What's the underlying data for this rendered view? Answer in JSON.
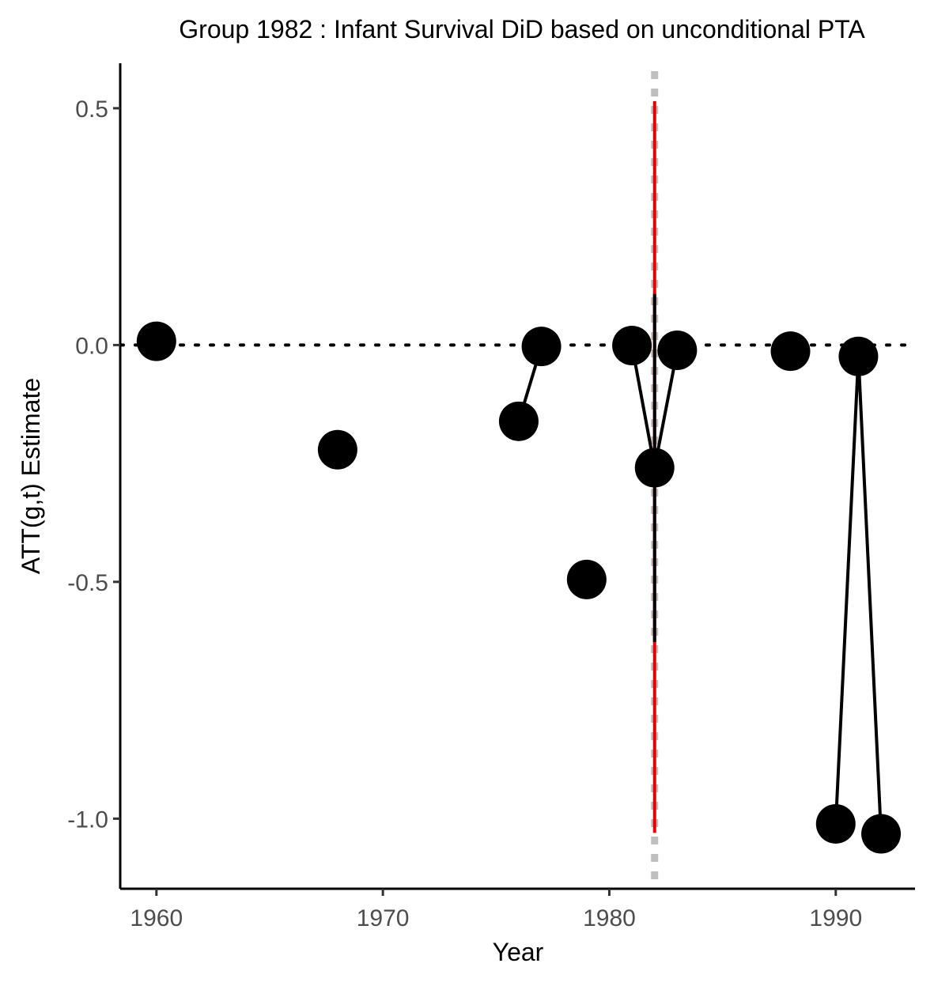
{
  "chart_data": {
    "type": "scatter",
    "title": "Group 1982 : Infant Survival DiD based on unconditional PTA",
    "xlabel": "Year",
    "ylabel": "ATT(g,t) Estimate",
    "xlim": [
      1958.4,
      1993.5
    ],
    "ylim": [
      -1.148,
      0.595
    ],
    "x_ticks": [
      1960,
      1970,
      1980,
      1990
    ],
    "x_tick_labels": [
      "1960",
      "1970",
      "1980",
      "1990"
    ],
    "y_ticks": [
      0.5,
      0.0,
      -0.5,
      -1.0
    ],
    "y_tick_labels": [
      "0.5",
      "0.0",
      "-0.5",
      "-1.0"
    ],
    "grid": false,
    "legend": "none",
    "reference_lines": {
      "horizontal_zero": {
        "y": 0,
        "style": "dotted",
        "color": "#000000"
      },
      "treatment_year": {
        "x": 1982,
        "style": "dashed",
        "color": "#bfbfbf"
      }
    },
    "points": [
      {
        "x": 1960,
        "y": 0.008
      },
      {
        "x": 1968,
        "y": -0.221
      },
      {
        "x": 1976,
        "y": -0.161
      },
      {
        "x": 1977,
        "y": -0.003
      },
      {
        "x": 1979,
        "y": -0.495
      },
      {
        "x": 1981,
        "y": -0.001
      },
      {
        "x": 1982,
        "y": -0.259
      },
      {
        "x": 1983,
        "y": -0.011
      },
      {
        "x": 1988,
        "y": -0.013
      },
      {
        "x": 1990,
        "y": -1.011
      },
      {
        "x": 1991,
        "y": -0.024
      },
      {
        "x": 1992,
        "y": -1.032
      }
    ],
    "connecting_segments": [
      {
        "from": [
          1976,
          -0.161
        ],
        "to": [
          1977,
          -0.003
        ]
      },
      {
        "from": [
          1981,
          -0.001
        ],
        "to": [
          1982,
          -0.259
        ]
      },
      {
        "from": [
          1982,
          -0.259
        ],
        "to": [
          1983,
          -0.011
        ]
      },
      {
        "from": [
          1990,
          -1.011
        ],
        "to": [
          1991,
          -0.024
        ]
      },
      {
        "from": [
          1991,
          -0.024
        ],
        "to": [
          1992,
          -1.032
        ]
      }
    ],
    "confidence_interval": {
      "x": 1982,
      "inner": {
        "low": -0.627,
        "high": 0.108,
        "color": "#000000"
      },
      "outer": {
        "low": -1.03,
        "high": 0.515,
        "color": "#e60000"
      }
    },
    "point_color": "#000000"
  }
}
